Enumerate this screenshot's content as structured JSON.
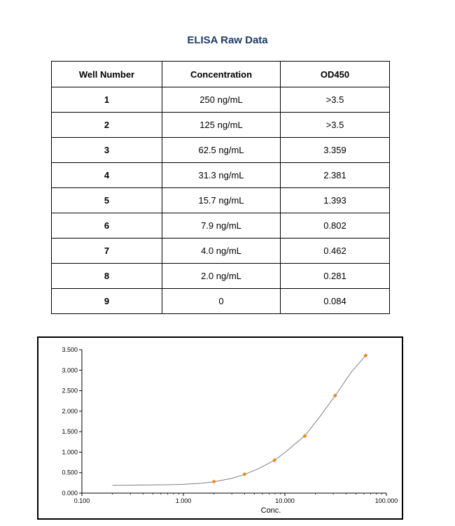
{
  "title": "ELISA Raw Data",
  "table": {
    "headers": [
      "Well Number",
      "Concentration",
      "OD450"
    ],
    "rows": [
      [
        "1",
        "250 ng/mL",
        ">3.5"
      ],
      [
        "2",
        "125 ng/mL",
        ">3.5"
      ],
      [
        "3",
        "62.5 ng/mL",
        "3.359"
      ],
      [
        "4",
        "31.3 ng/mL",
        "2.381"
      ],
      [
        "5",
        "15.7 ng/mL",
        "1.393"
      ],
      [
        "6",
        "7.9 ng/mL",
        "0.802"
      ],
      [
        "7",
        "4.0 ng/mL",
        "0.462"
      ],
      [
        "8",
        "2.0 ng/mL",
        "0.281"
      ],
      [
        "9",
        "0",
        "0.084"
      ]
    ]
  },
  "chart_data": {
    "type": "scatter",
    "title": "",
    "xlabel": "Conc.",
    "ylabel": "",
    "x_scale": "log",
    "xlim": [
      0.1,
      100
    ],
    "ylim": [
      0,
      3.5
    ],
    "x_ticks": [
      "0.100",
      "1.000",
      "10.000",
      "100.000"
    ],
    "y_ticks": [
      "0.000",
      "0.500",
      "1.000",
      "1.500",
      "2.000",
      "2.500",
      "3.000",
      "3.500"
    ],
    "grid": false,
    "points": {
      "x": [
        2.0,
        4.0,
        7.9,
        15.7,
        31.3,
        62.5
      ],
      "y": [
        0.281,
        0.462,
        0.802,
        1.393,
        2.381,
        3.359
      ]
    },
    "fit_curve": {
      "x": [
        0.2,
        0.3,
        0.5,
        0.7,
        1.0,
        1.5,
        2.0,
        3.0,
        4.0,
        5.5,
        7.9,
        10.0,
        15.7,
        22.0,
        31.3,
        45.0,
        62.5
      ],
      "y": [
        0.19,
        0.195,
        0.2,
        0.205,
        0.215,
        0.24,
        0.275,
        0.36,
        0.455,
        0.6,
        0.8,
        0.99,
        1.4,
        1.86,
        2.38,
        2.95,
        3.36
      ]
    },
    "colors": {
      "points": "#e8891f",
      "curve": "#7f7f7f"
    }
  }
}
